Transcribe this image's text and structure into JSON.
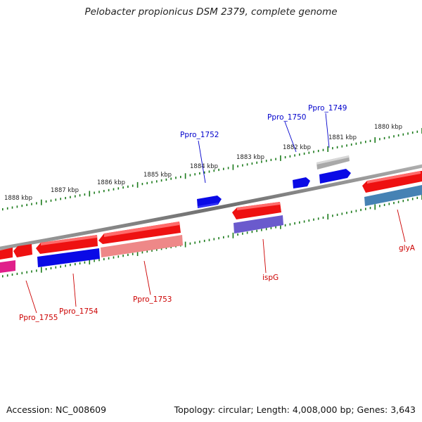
{
  "title": "Pelobacter propionicus DSM 2379, complete genome",
  "footer": {
    "accession": "Accession: NC_008609",
    "topology": "Topology: circular; Length: 4,008,000 bp; Genes: 3,643"
  },
  "ticks": [
    {
      "label": "1888 kbp"
    },
    {
      "label": "1887 kbp"
    },
    {
      "label": "1886 kbp"
    },
    {
      "label": "1885 kbp"
    },
    {
      "label": "1884 kbp"
    },
    {
      "label": "1883 kbp"
    },
    {
      "label": "1882 kbp"
    },
    {
      "label": "1881 kbp"
    },
    {
      "label": "1880 kbp"
    }
  ],
  "gene_labels": [
    {
      "name": "pelo-label-ppro-1752",
      "text": "Ppro_1752",
      "color": "#0000cc"
    },
    {
      "name": "pelo-label-ppro-1750",
      "text": "Ppro_1750",
      "color": "#0000cc"
    },
    {
      "name": "pelo-label-ppro-1749",
      "text": "Ppro_1749",
      "color": "#0000cc"
    },
    {
      "name": "pelo-label-ppro-1755",
      "text": "Ppro_1755",
      "color": "#cc0000"
    },
    {
      "name": "pelo-label-ppro-1754",
      "text": "Ppro_1754",
      "color": "#cc0000"
    },
    {
      "name": "pelo-label-ppro-1753",
      "text": "Ppro_1753",
      "color": "#cc0000"
    },
    {
      "name": "pelo-label-ispg",
      "text": "ispG",
      "color": "#cc0000"
    },
    {
      "name": "pelo-label-glya",
      "text": "glyA",
      "color": "#cc0000"
    }
  ],
  "colors": {
    "backbone": "#808080",
    "tick_outer": "#1a7a1a",
    "tick_inner": "#1a7a1a",
    "gene_red": "#ee1111",
    "gene_blue": "#0a0ae6",
    "gene_grey": "#a9a9a9",
    "gene_pink": "#ee8888",
    "gene_purple": "#6a5acd",
    "gene_steel": "#4682b4",
    "gene_magenta": "#e0208a"
  }
}
